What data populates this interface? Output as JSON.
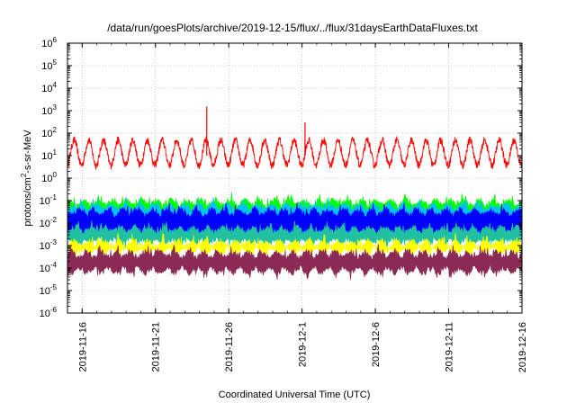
{
  "chart_data": {
    "type": "line",
    "title": "/data/run/goesPlots/archive/2019-12-15/flux/../flux/31daysEarthDataFluxes.txt",
    "xlabel": "Coordinated Universal Time (UTC)",
    "ylabel_parts": [
      "protons/cm",
      "2",
      "-s-sr-MeV"
    ],
    "y_scale": "log",
    "ylim": [
      1e-06,
      1000000.0
    ],
    "y_ticks": [
      {
        "base": "10",
        "exp": "-6"
      },
      {
        "base": "10",
        "exp": "-5"
      },
      {
        "base": "10",
        "exp": "-4"
      },
      {
        "base": "10",
        "exp": "-3"
      },
      {
        "base": "10",
        "exp": "-2"
      },
      {
        "base": "10",
        "exp": "-1"
      },
      {
        "base": "10",
        "exp": "0"
      },
      {
        "base": "10",
        "exp": "1"
      },
      {
        "base": "10",
        "exp": "2"
      },
      {
        "base": "10",
        "exp": "3"
      },
      {
        "base": "10",
        "exp": "4"
      },
      {
        "base": "10",
        "exp": "5"
      },
      {
        "base": "10",
        "exp": "6"
      }
    ],
    "xlim": [
      "2019-11-15",
      "2019-12-16"
    ],
    "x_ticks": [
      "2019-11-16",
      "2019-11-21",
      "2019-11-26",
      "2019-12-1",
      "2019-12-6",
      "2019-12-11",
      "2019-12-16"
    ],
    "grid": true,
    "series": [
      {
        "color": "#ff0000",
        "style": "line",
        "typical_low": 3,
        "typical_high": 60,
        "daily_cycle": true,
        "spikes": [
          {
            "date": "2019-11-24.5",
            "value": 1500
          },
          {
            "date": "2019-12-1.2",
            "value": 300
          }
        ]
      },
      {
        "color": "#00ff00",
        "style": "band",
        "low": 0.003,
        "high": 0.08
      },
      {
        "color": "#00bfff",
        "style": "band",
        "low": 0.003,
        "high": 0.05
      },
      {
        "color": "#0000ff",
        "style": "band",
        "low": 0.004,
        "high": 0.03
      },
      {
        "color": "#20c0a0",
        "style": "band",
        "low": 0.0015,
        "high": 0.005
      },
      {
        "color": "#ffff00",
        "style": "band",
        "low": 0.0006,
        "high": 0.0012
      },
      {
        "color": "#8b2a55",
        "style": "band",
        "low": 8e-05,
        "high": 0.0004
      }
    ],
    "colors": {
      "axis": "#000000",
      "grid": "#a0a0a0",
      "background": "#ffffff"
    }
  }
}
